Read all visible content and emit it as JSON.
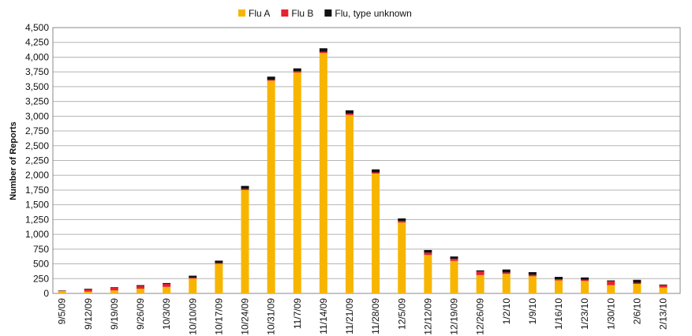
{
  "chart_data": {
    "type": "stacked_bar",
    "y_label": "Number of Reports",
    "categories": [
      "9/5/09",
      "9/12/09",
      "9/19/09",
      "9/26/09",
      "10/3/09",
      "10/10/09",
      "10/17/09",
      "10/24/09",
      "10/31/09",
      "11/7/09",
      "11/14/09",
      "11/21/09",
      "11/28/09",
      "12/5/09",
      "12/12/09",
      "12/19/09",
      "12/26/09",
      "1/2/10",
      "1/9/10",
      "1/16/10",
      "1/23/10",
      "1/30/10",
      "2/6/10",
      "2/13/10"
    ],
    "series": [
      {
        "name": "Flu A",
        "color": "#f7b500",
        "values": [
          40,
          30,
          50,
          80,
          110,
          250,
          500,
          1750,
          3600,
          3740,
          4070,
          3020,
          2030,
          1200,
          650,
          550,
          310,
          330,
          290,
          220,
          210,
          140,
          160,
          100
        ]
      },
      {
        "name": "Flu B",
        "color": "#e8212f",
        "values": [
          5,
          40,
          45,
          45,
          50,
          15,
          15,
          20,
          15,
          20,
          20,
          25,
          20,
          25,
          40,
          35,
          60,
          25,
          25,
          20,
          20,
          65,
          20,
          40
        ]
      },
      {
        "name": "Flu, type unknown",
        "color": "#111111",
        "values": [
          5,
          10,
          10,
          15,
          15,
          35,
          40,
          50,
          55,
          50,
          60,
          55,
          50,
          45,
          45,
          40,
          20,
          50,
          45,
          40,
          40,
          15,
          50,
          10
        ]
      }
    ],
    "ylim": [
      0,
      4500
    ],
    "yticks": [
      0,
      250,
      500,
      750,
      {
        "value": 1000,
        "label": "1,000"
      },
      {
        "value": 1250,
        "label": "1,250"
      },
      {
        "value": 1500,
        "label": "1,500"
      },
      {
        "value": 1750,
        "label": "1,750"
      },
      {
        "value": 2000,
        "label": "2,000"
      },
      {
        "value": 2250,
        "label": "2,250"
      },
      {
        "value": 2500,
        "label": "2,500"
      },
      {
        "value": 2750,
        "label": "2,750"
      },
      {
        "value": 3000,
        "label": "3,000"
      },
      {
        "value": 3250,
        "label": "3,250"
      },
      {
        "value": 3500,
        "label": "3,500"
      },
      {
        "value": 3750,
        "label": "3,750"
      },
      {
        "value": 4000,
        "label": "4,000"
      },
      {
        "value": 4250,
        "label": "4,250"
      },
      {
        "value": 4500,
        "label": "4,500"
      }
    ],
    "grid": true,
    "legend": "top"
  }
}
